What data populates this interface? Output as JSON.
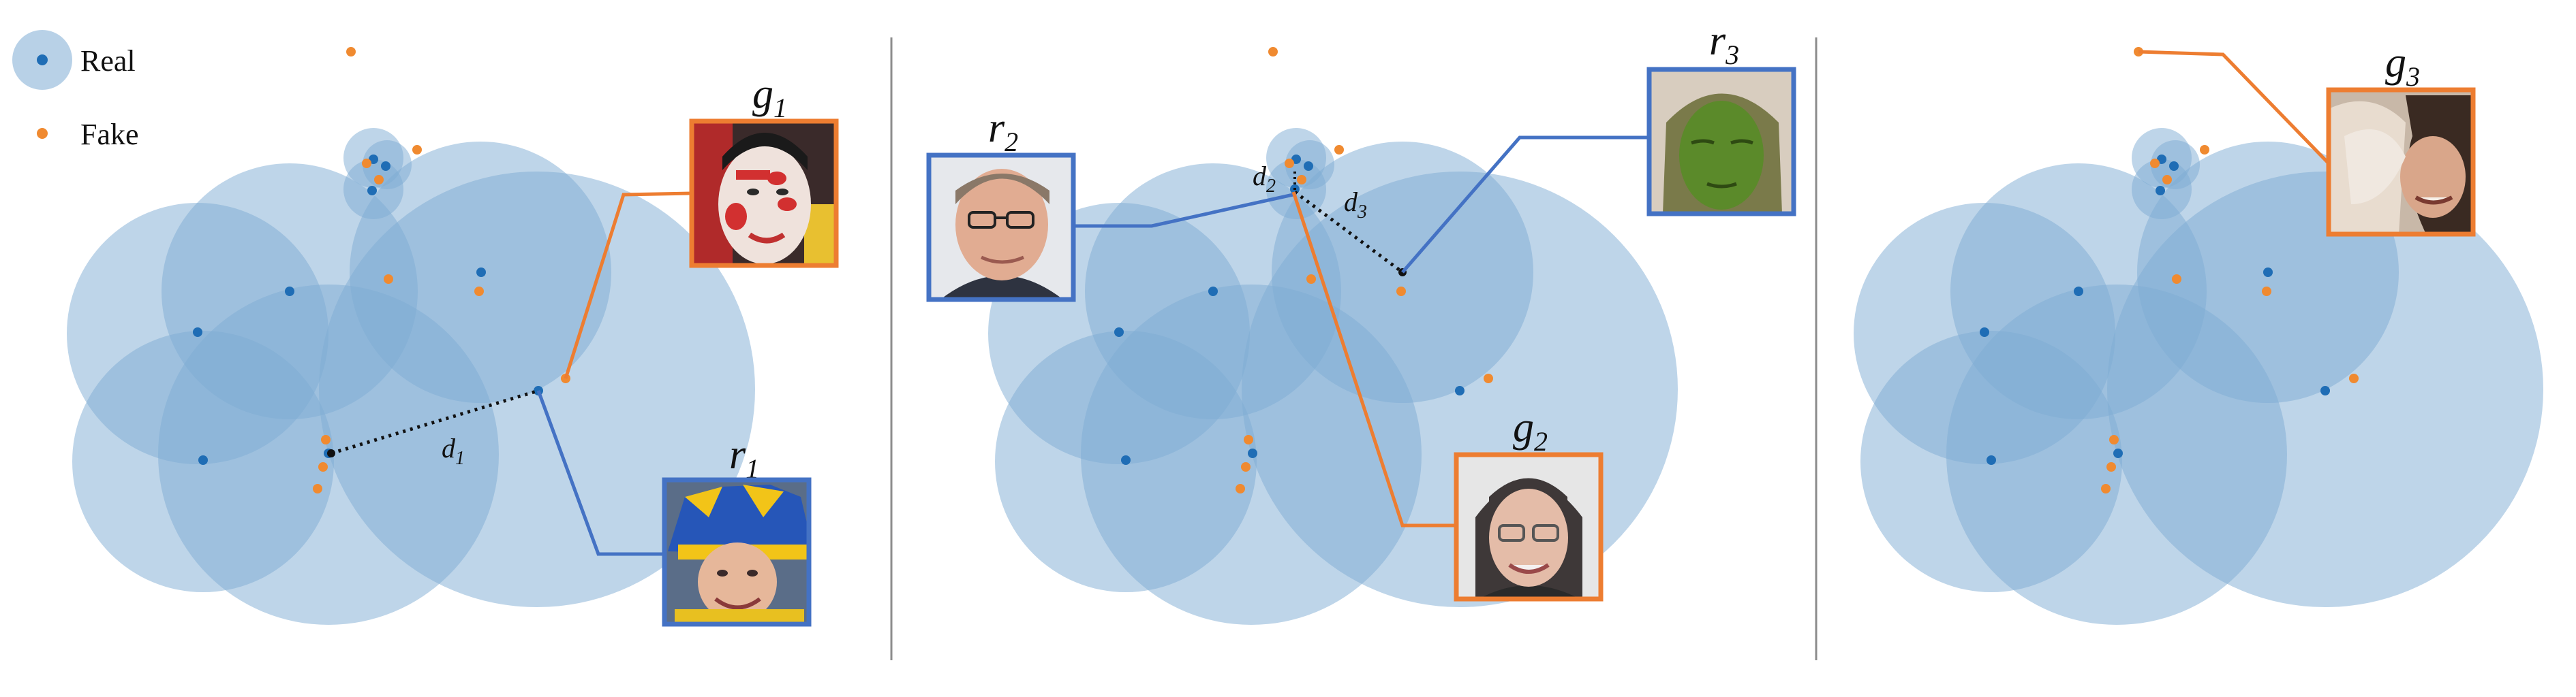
{
  "legend": {
    "real_label": "Real",
    "fake_label": "Fake"
  },
  "colors": {
    "real_fill": "#7eabd4",
    "real_dot": "#1f6db5",
    "fake_dot": "#f08a30",
    "real_frame": "#4472c4",
    "fake_frame": "#ed7d31",
    "divider": "#8c8c8c"
  },
  "panels": [
    {
      "title": "",
      "distances": [
        {
          "base": "d",
          "sub": "1"
        }
      ],
      "images": [
        {
          "kind": "fake",
          "base": "g",
          "sub": "1",
          "content": "face with red-and-white face paint"
        },
        {
          "kind": "real",
          "base": "r",
          "sub": "1",
          "content": "smiling woman in yellow-blue jester hat"
        }
      ]
    },
    {
      "title": "",
      "distances": [
        {
          "base": "d",
          "sub": "2"
        },
        {
          "base": "d",
          "sub": "3"
        }
      ],
      "images": [
        {
          "kind": "real",
          "base": "r",
          "sub": "2",
          "content": "man with glasses"
        },
        {
          "kind": "real",
          "base": "r",
          "sub": "3",
          "content": "face painted green with hood"
        },
        {
          "kind": "fake",
          "base": "g",
          "sub": "2",
          "content": "smiling woman with glasses"
        }
      ]
    },
    {
      "title": "",
      "distances": [],
      "images": [
        {
          "kind": "fake",
          "base": "g",
          "sub": "3",
          "content": "distorted generated face"
        }
      ]
    }
  ]
}
